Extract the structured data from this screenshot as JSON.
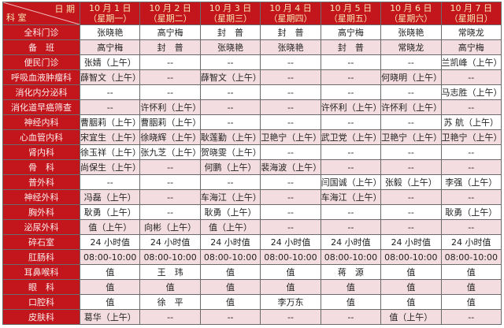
{
  "header": {
    "corner_date": "日  期",
    "corner_dept": "科  室",
    "days": [
      {
        "date": "10 月 1 日",
        "weekday": "（星期一）"
      },
      {
        "date": "10 月 2 日",
        "weekday": "（星期二）"
      },
      {
        "date": "10 月 3 日",
        "weekday": "（星期三）"
      },
      {
        "date": "10 月 4 日",
        "weekday": "（星期四）"
      },
      {
        "date": "10 月 5 日",
        "weekday": "（星期五）"
      },
      {
        "date": "10 月 6 日",
        "weekday": "（星期六）"
      },
      {
        "date": "10 月 7 日",
        "weekday": "（星期日）"
      }
    ]
  },
  "rows": [
    {
      "dept": "全科门诊",
      "cells": [
        "张晓艳",
        "高宁梅",
        "封　普",
        "封　普",
        "高宁梅",
        "张晓艳",
        "常晓龙"
      ]
    },
    {
      "dept": "备　班",
      "cells": [
        "高宁梅",
        "封　普",
        "张晓艳",
        "张晓艳",
        "封　普",
        "常晓龙",
        "高宁梅"
      ]
    },
    {
      "dept": "便民门诊",
      "cells": [
        "张婧（上午）",
        "--",
        "--",
        "--",
        "--",
        "--",
        "兰凯峰（上午）"
      ]
    },
    {
      "dept": "呼吸血液肿瘤科",
      "cells": [
        "薛智文（上午）",
        "--",
        "薛智文（上午）",
        "--",
        "--",
        "何晓明（上午）",
        "--"
      ]
    },
    {
      "dept": "消化内分泌科",
      "cells": [
        "--",
        "--",
        "--",
        "--",
        "--",
        "--",
        "马志胜（上午）"
      ]
    },
    {
      "dept": "消化道早癌筛查",
      "cells": [
        "--",
        "许怀利（上午）",
        "--",
        "--",
        "许怀利（上午）",
        "许怀利（上午）",
        "--"
      ]
    },
    {
      "dept": "神经内科",
      "cells": [
        "曹胭莉（上午）",
        "曹胭莉（上午）",
        "--",
        "--",
        "--",
        "--",
        "苏 航（上午）"
      ]
    },
    {
      "dept": "心血管内科",
      "cells": [
        "宋宜生（上午）",
        "徐晓辉（上午）",
        "耿莲勤（上午）",
        "卫艳宁（上午）",
        "武卫党（上午）",
        "卫艳宁（上午）",
        "卫艳宁（上午）"
      ]
    },
    {
      "dept": "肾内科",
      "cells": [
        "徐玉祥（上午）",
        "张九芝（上午）",
        "贺晓雯（上午）",
        "--",
        "--",
        "--",
        "--"
      ]
    },
    {
      "dept": "骨　科",
      "cells": [
        "尚保生（上午）",
        "--",
        "何鹏（上午）",
        "裴海波（上午）",
        "--",
        "--",
        "--"
      ]
    },
    {
      "dept": "普外科",
      "cells": [
        "--",
        "--",
        "--",
        "--",
        "闫国诚（上午）",
        "张毅（上午）",
        "李强（上午）"
      ]
    },
    {
      "dept": "神经外科",
      "cells": [
        "冯磊（上午）",
        "--",
        "车海江（上午）",
        "--",
        "车海江（上午）",
        "--",
        "--"
      ]
    },
    {
      "dept": "胸外科",
      "cells": [
        "耿勇（上午）",
        "--",
        "耿勇（上午）",
        "--",
        "--",
        "--",
        "耿勇（上午）"
      ]
    },
    {
      "dept": "泌尿外科",
      "cells": [
        "值（上午）",
        "向彬（上午）",
        "值（上午）",
        "--",
        "--",
        "--",
        "--"
      ]
    },
    {
      "dept": "碎石室",
      "cells": [
        "24 小时值",
        "24 小时值",
        "24 小时值",
        "24 小时值",
        "24 小时值",
        "24 小时值",
        "24 小时值"
      ]
    },
    {
      "dept": "肛肠科",
      "cells": [
        "08:00-10:00",
        "08:00-10:00",
        "08:00-10:00",
        "08:00-10:00",
        "08:00-10:00",
        "08:00-10:00",
        "08:00-10:00"
      ]
    },
    {
      "dept": "耳鼻喉科",
      "cells": [
        "值",
        "王　玮",
        "值",
        "值",
        "蒋　源",
        "值",
        "值"
      ]
    },
    {
      "dept": "眼　科",
      "cells": [
        "值",
        "值",
        "值",
        "值",
        "值",
        "值",
        "值"
      ]
    },
    {
      "dept": "口腔科",
      "cells": [
        "值",
        "徐　平",
        "值",
        "李万东",
        "值",
        "值",
        "值"
      ]
    },
    {
      "dept": "皮肤科",
      "cells": [
        "葛华（上午）",
        "--",
        "--",
        "--",
        "--",
        "值（上午）",
        "--"
      ]
    }
  ],
  "colors": {
    "header_bg": "#c3161c",
    "header_text": "#f7e6b0",
    "stripe": "#f4dde1"
  }
}
